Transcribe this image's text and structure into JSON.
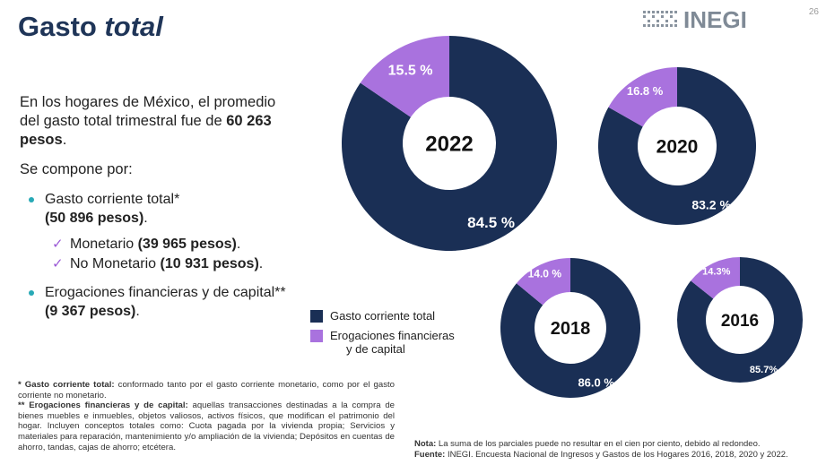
{
  "slide_number": "26",
  "title": {
    "main": "Gasto ",
    "emph": "total"
  },
  "logo": {
    "text": "INEGI",
    "icon": "inegi-logo-icon"
  },
  "intro": {
    "line1": "En los hogares de México, el promedio del gasto total trimestral fue de ",
    "amount": "60 263 pesos",
    "end": "."
  },
  "compose_label": "Se compone por:",
  "bullets": {
    "current": {
      "label": "Gasto corriente total*",
      "amount": "(50 896 pesos)",
      "end": "."
    },
    "monetary": {
      "label": "Monetario ",
      "amount": "(39 965 pesos)",
      "end": "."
    },
    "non_monetary": {
      "label": "No Monetario ",
      "amount": "(10 931 pesos)",
      "end": "."
    },
    "financial": {
      "label": "Erogaciones financieras y de capital** ",
      "amount": "(9 367 pesos)",
      "end": "."
    }
  },
  "legend": {
    "current": "Gasto corriente total",
    "financial_line1": "Erogaciones financieras",
    "financial_line2": "y de capital"
  },
  "colors": {
    "current": "#1a2f55",
    "financial": "#a972de",
    "teal": "#28a9b6"
  },
  "footnotes": {
    "f1_bold": "* Gasto corriente total:",
    "f1_text": " conformado tanto por el gasto corriente monetario, como por el gasto corriente no monetario.",
    "f2_bold": "** Erogaciones financieras y de capital:",
    "f2_text": " aquellas transacciones destinadas a la compra de bienes muebles e inmuebles, objetos valiosos, activos físicos, que modifican el patrimonio del hogar. Incluyen conceptos totales como: Cuota pagada por la vivienda propia; Servicios y materiales para reparación, mantenimiento y/o ampliación de la vivienda; Depósitos en cuentas de ahorro, tandas, cajas de ahorro; etcétera."
  },
  "notes": {
    "nota_bold": "Nota:",
    "nota_text": " La suma de los parciales puede no resultar en el cien por ciento, debido al redondeo.",
    "fuente_bold": "Fuente:",
    "fuente_text": " INEGI. Encuesta Nacional de Ingresos y Gastos de los Hogares 2016, 2018, 2020 y 2022."
  },
  "chart_data": {
    "type": "pie",
    "title": "Gasto total",
    "series_names": [
      "Gasto corriente total",
      "Erogaciones financieras y de capital"
    ],
    "charts": [
      {
        "year": "2022",
        "values": [
          84.5,
          15.5
        ],
        "labels": [
          "84.5 %",
          "15.5 %"
        ]
      },
      {
        "year": "2020",
        "values": [
          83.2,
          16.8
        ],
        "labels": [
          "83.2 %",
          "16.8 %"
        ]
      },
      {
        "year": "2018",
        "values": [
          86.0,
          14.0
        ],
        "labels": [
          "86.0 %",
          "14.0 %"
        ]
      },
      {
        "year": "2016",
        "values": [
          85.7,
          14.3
        ],
        "labels": [
          "85.7%",
          "14.3%"
        ]
      }
    ]
  }
}
